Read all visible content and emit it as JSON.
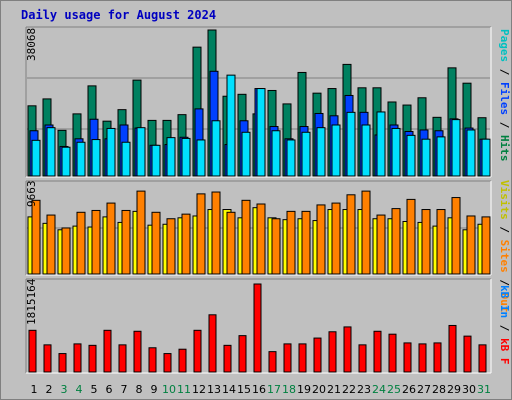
{
  "title": "Daily usage for August 2024",
  "panels": {
    "top_max": "38068",
    "mid_max": "9663",
    "bot_max": "1815164"
  },
  "legend": {
    "pages": "Pages",
    "files": "Files",
    "hits": "Hits",
    "visits": "Visits",
    "sites": "Sites",
    "out": "Out",
    "kb_in": "kB In",
    "kb_f": "kB F",
    "sep": " / ",
    "pages_color": "#00c0c0",
    "files_color": "#0040ff",
    "hits_color": "#008040",
    "visits_color": "#ffff00",
    "sites_color": "#ff8000",
    "out_color": "#ff8000",
    "kb_in_color": "#0080ff",
    "kb_f_color": "#ff0000"
  },
  "chart_data": {
    "type": "bar",
    "categories": [
      "1",
      "2",
      "3",
      "4",
      "5",
      "6",
      "7",
      "8",
      "9",
      "10",
      "11",
      "12",
      "13",
      "14",
      "15",
      "16",
      "17",
      "18",
      "19",
      "20",
      "21",
      "22",
      "23",
      "24",
      "25",
      "26",
      "27",
      "28",
      "29",
      "30",
      "31"
    ],
    "weekend_days": [
      "3",
      "4",
      "10",
      "11",
      "17",
      "18",
      "24",
      "25",
      "31"
    ],
    "panels": [
      {
        "name": "top",
        "ymax": 38068,
        "series": [
          {
            "name": "Hits",
            "color": "#008060",
            "values": [
              18300,
              20100,
              11900,
              16200,
              23500,
              14300,
              17300,
              25000,
              14500,
              14500,
              16000,
              33600,
              38068,
              20800,
              21300,
              16200,
              22300,
              18800,
              27000,
              21600,
              22800,
              29100,
              23000,
              23000,
              19300,
              18500,
              20400,
              15300,
              28200,
              24200,
              15200
            ]
          },
          {
            "name": "Files",
            "color": "#0040ff",
            "values": [
              11800,
              13300,
              7700,
              9700,
              14800,
              9700,
              13300,
              12500,
              8000,
              8200,
              10100,
              17500,
              27300,
              8200,
              14400,
              22800,
              12900,
              9700,
              12900,
              16300,
              15700,
              21000,
              16600,
              10700,
              13300,
              11600,
              12000,
              11800,
              14900,
              12500,
              9600
            ]
          },
          {
            "name": "Pages",
            "color": "#00e0ff",
            "values": [
              9300,
              12600,
              7500,
              8800,
              9500,
              12400,
              8800,
              12600,
              8000,
              10000,
              9800,
              9400,
              14400,
              26300,
              11400,
              22800,
              11800,
              9400,
              11400,
              12600,
              13300,
              16600,
              13300,
              16700,
              12400,
              10600,
              9600,
              10200,
              14700,
              12000,
              9600
            ]
          }
        ]
      },
      {
        "name": "mid",
        "ymax": 9663,
        "series": [
          {
            "name": "Visits",
            "color": "#ffff00",
            "values": [
              6200,
              5500,
              4800,
              5200,
              5100,
              6200,
              5600,
              6800,
              5300,
              5400,
              6100,
              6300,
              7000,
              7000,
              6100,
              7200,
              6100,
              5900,
              6000,
              5800,
              7000,
              7000,
              7000,
              6000,
              6000,
              5700,
              5600,
              5200,
              6100,
              4800,
              5400
            ]
          },
          {
            "name": "Sites",
            "color": "#ff8000",
            "values": [
              8000,
              6400,
              5000,
              6700,
              6900,
              7700,
              6900,
              9000,
              6700,
              6000,
              6500,
              8700,
              8900,
              6700,
              8000,
              7600,
              6000,
              6800,
              6800,
              7500,
              7700,
              8600,
              9000,
              6400,
              7100,
              8100,
              7000,
              7000,
              8300,
              6300,
              6200
            ]
          }
        ]
      },
      {
        "name": "bot",
        "ymax": 1815164,
        "series": [
          {
            "name": "kB F",
            "color": "#ff0000",
            "values": [
              860000,
              560000,
              380000,
              580000,
              550000,
              860000,
              560000,
              840000,
              500000,
              380000,
              470000,
              860000,
              1180000,
              550000,
              750000,
              1815164,
              420000,
              580000,
              580000,
              700000,
              830000,
              930000,
              560000,
              840000,
              780000,
              600000,
              580000,
              600000,
              960000,
              740000,
              560000
            ]
          }
        ]
      }
    ],
    "xlabel": "",
    "ylabel": ""
  }
}
